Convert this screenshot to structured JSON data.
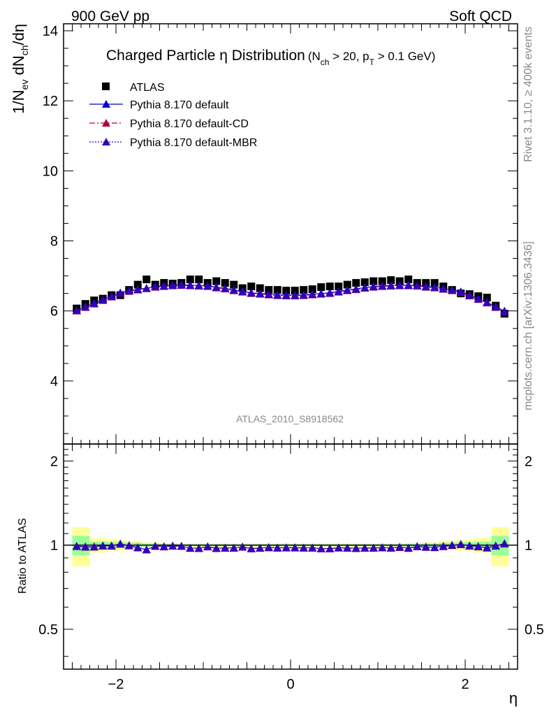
{
  "header": {
    "left": "900 GeV pp",
    "right": "Soft QCD"
  },
  "side_labels": {
    "rivet": "Rivet 3.1.10, ≥ 400k events",
    "mcplots": "mcplots.cern.ch [arXiv:1306.3436]"
  },
  "plot": {
    "title_main": "Charged Particle η Distribution",
    "title_sub": "(N",
    "title_sub_ch": "ch",
    "title_sub_mid": " > 20, p",
    "title_sub_T": "T",
    "title_sub_end": " > 0.1 GeV)",
    "ylabel_a": "1/N",
    "ylabel_ev": "ev",
    "ylabel_b": " dN",
    "ylabel_ch": "ch",
    "ylabel_c": "/dη",
    "analysis_id": "ATLAS_2010_S8918562",
    "ratio_ylabel": "Ratio to ATLAS",
    "xlabel": "η"
  },
  "colors": {
    "data": "#000000",
    "default": "#0000cc",
    "cd": "#b2003c",
    "mbr": "#3300bb",
    "band_inner": "#99ff99",
    "band_outer": "#ffff99"
  },
  "chart_data": {
    "type": "scatter",
    "x_bins": [
      -2.45,
      -2.35,
      -2.25,
      -2.15,
      -2.05,
      -1.95,
      -1.85,
      -1.75,
      -1.65,
      -1.55,
      -1.45,
      -1.35,
      -1.25,
      -1.15,
      -1.05,
      -0.95,
      -0.85,
      -0.75,
      -0.65,
      -0.55,
      -0.45,
      -0.35,
      -0.25,
      -0.15,
      -0.05,
      0.05,
      0.15,
      0.25,
      0.35,
      0.45,
      0.55,
      0.65,
      0.75,
      0.85,
      0.95,
      1.05,
      1.15,
      1.25,
      1.35,
      1.45,
      1.55,
      1.65,
      1.75,
      1.85,
      1.95,
      2.05,
      2.15,
      2.25,
      2.35,
      2.45
    ],
    "xlim": [
      -2.6,
      2.6
    ],
    "main_ylim": [
      2.2,
      14.2
    ],
    "ratio_ylim": [
      0.36,
      2.3
    ],
    "x_ticks": [
      -2,
      0,
      2
    ],
    "main_y_ticks": [
      4,
      6,
      8,
      10,
      12,
      14
    ],
    "ratio_y_ticks": [
      0.5,
      1,
      2
    ],
    "series": [
      {
        "name": "ATLAS",
        "key": "data",
        "marker": "square",
        "values": [
          6.07,
          6.2,
          6.3,
          6.35,
          6.45,
          6.45,
          6.6,
          6.75,
          6.9,
          6.75,
          6.8,
          6.78,
          6.8,
          6.9,
          6.9,
          6.8,
          6.85,
          6.8,
          6.75,
          6.65,
          6.7,
          6.65,
          6.6,
          6.6,
          6.58,
          6.58,
          6.6,
          6.62,
          6.68,
          6.7,
          6.7,
          6.75,
          6.8,
          6.82,
          6.85,
          6.85,
          6.88,
          6.85,
          6.9,
          6.8,
          6.8,
          6.8,
          6.7,
          6.6,
          6.5,
          6.48,
          6.42,
          6.38,
          6.15,
          5.92
        ]
      },
      {
        "name": "Pythia 8.170 default",
        "key": "default",
        "marker": "triangle",
        "line": "solid",
        "values": [
          6.02,
          6.12,
          6.22,
          6.32,
          6.42,
          6.52,
          6.58,
          6.62,
          6.65,
          6.7,
          6.72,
          6.74,
          6.75,
          6.74,
          6.73,
          6.72,
          6.68,
          6.65,
          6.6,
          6.56,
          6.52,
          6.5,
          6.48,
          6.46,
          6.45,
          6.45,
          6.46,
          6.48,
          6.5,
          6.52,
          6.56,
          6.6,
          6.63,
          6.67,
          6.7,
          6.72,
          6.73,
          6.74,
          6.74,
          6.73,
          6.7,
          6.68,
          6.64,
          6.6,
          6.55,
          6.45,
          6.35,
          6.25,
          6.12,
          6.0
        ]
      },
      {
        "name": "Pythia 8.170 default-CD",
        "key": "cd",
        "marker": "triangle",
        "line": "dashdot",
        "values": [
          6.0,
          6.1,
          6.2,
          6.3,
          6.4,
          6.5,
          6.56,
          6.6,
          6.64,
          6.68,
          6.7,
          6.72,
          6.73,
          6.72,
          6.71,
          6.7,
          6.66,
          6.63,
          6.58,
          6.54,
          6.5,
          6.48,
          6.46,
          6.44,
          6.43,
          6.43,
          6.44,
          6.46,
          6.48,
          6.5,
          6.54,
          6.58,
          6.61,
          6.65,
          6.68,
          6.7,
          6.71,
          6.72,
          6.72,
          6.71,
          6.68,
          6.66,
          6.62,
          6.58,
          6.53,
          6.43,
          6.33,
          6.23,
          6.1,
          5.98
        ]
      },
      {
        "name": "Pythia 8.170 default-MBR",
        "key": "mbr",
        "marker": "triangle",
        "line": "dotted",
        "values": [
          6.01,
          6.11,
          6.21,
          6.31,
          6.41,
          6.51,
          6.57,
          6.61,
          6.64,
          6.69,
          6.71,
          6.73,
          6.74,
          6.73,
          6.72,
          6.71,
          6.67,
          6.64,
          6.59,
          6.55,
          6.51,
          6.49,
          6.47,
          6.45,
          6.44,
          6.44,
          6.45,
          6.47,
          6.49,
          6.51,
          6.55,
          6.59,
          6.62,
          6.66,
          6.69,
          6.71,
          6.72,
          6.73,
          6.73,
          6.72,
          6.69,
          6.67,
          6.63,
          6.59,
          6.54,
          6.44,
          6.34,
          6.24,
          6.11,
          5.99
        ]
      }
    ],
    "ratio_band": {
      "edges": [
        -2.5,
        -2.3,
        -2.1,
        -1.9,
        -1.7,
        -1.5,
        -1.3,
        1.3,
        1.5,
        1.7,
        1.9,
        2.1,
        2.3,
        2.5
      ],
      "inner": [
        0.08,
        0.03,
        0.025,
        0.02,
        0.012,
        0.01,
        0.008,
        0.01,
        0.012,
        0.02,
        0.025,
        0.03,
        0.08
      ],
      "outer": [
        0.16,
        0.06,
        0.045,
        0.035,
        0.022,
        0.018,
        0.014,
        0.018,
        0.022,
        0.035,
        0.045,
        0.06,
        0.16
      ]
    },
    "legend_position": "top-left"
  }
}
